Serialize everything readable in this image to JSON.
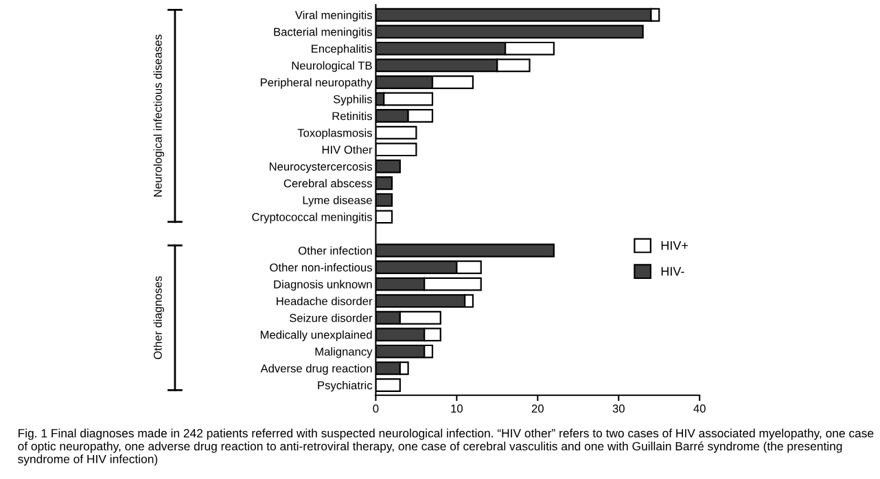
{
  "chart_data": {
    "type": "bar",
    "orientation": "horizontal",
    "stacked": true,
    "categories": [
      "Viral meningitis",
      "Bacterial meningitis",
      "Encephalitis",
      "Neurological TB",
      "Peripheral neuropathy",
      "Syphilis",
      "Retinitis",
      "Toxoplasmosis",
      "HIV Other",
      "Neurocystercercosis",
      "Cerebral abscess",
      "Lyme disease",
      "Cryptococcal meningitis",
      null,
      "Other infection",
      "Other non-infectious",
      "Diagnosis unknown",
      "Headache disorder",
      "Seizure disorder",
      "Medically unexplained",
      "Malignancy",
      "Adverse drug reaction",
      "Psychiatric"
    ],
    "series": [
      {
        "name": "HIV-",
        "color": "#404040",
        "values": [
          34,
          33,
          16,
          15,
          7,
          1,
          4,
          0,
          0,
          3,
          2,
          2,
          0,
          null,
          22,
          10,
          6,
          11,
          3,
          6,
          6,
          3,
          0
        ]
      },
      {
        "name": "HIV+",
        "color": "#ffffff",
        "values": [
          1,
          0,
          6,
          4,
          5,
          6,
          3,
          5,
          5,
          0,
          0,
          0,
          2,
          null,
          0,
          3,
          7,
          1,
          5,
          2,
          1,
          1,
          3
        ]
      }
    ],
    "xlim": [
      0,
      40
    ],
    "xticks": [
      0,
      10,
      20,
      30,
      40
    ],
    "grid": false,
    "legend": "right",
    "annotations": [
      "Neurological infectious diseases",
      "Other diagnoses",
      "Fig. 1 Final diagnoses made in 242 patients referred with suspected neurological infection. “HIV other” refers to two cases of HIV associated myelopathy, one case of optic neuropathy, one adverse drug reaction to anti-retroviral therapy, one case of cerebral vasculitis and one with Guillain Barré syndrome (the presenting syndrome of HIV infection)"
    ]
  }
}
